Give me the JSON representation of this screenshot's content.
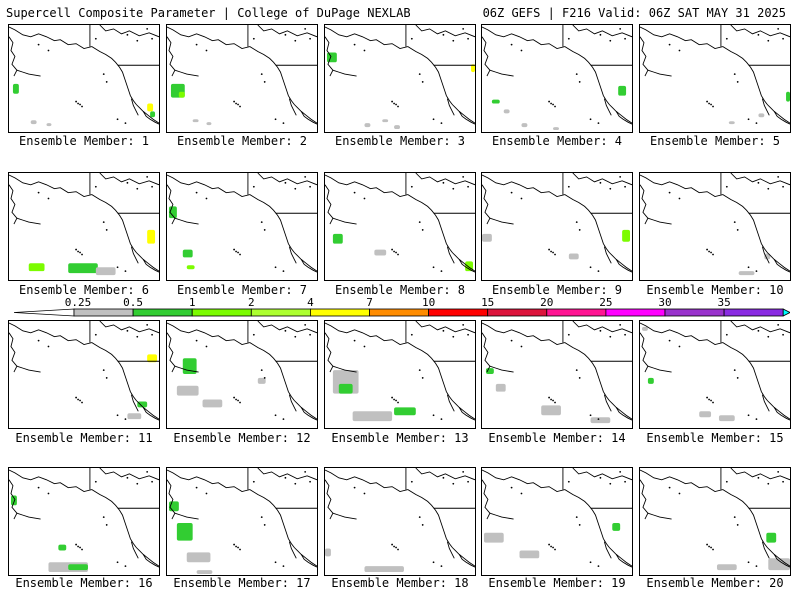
{
  "header": {
    "left_title": "Supercell Composite Parameter | College of DuPage NEXLAB",
    "right_title": "06Z GEFS | F216 Valid: 06Z SAT MAY 31 2025"
  },
  "colors": {
    "bins": [
      "#c0c0c0",
      "#32cd32",
      "#7cfc00",
      "#adff2f",
      "#ffff00",
      "#ff8c00",
      "#ff0000",
      "#dc143c",
      "#ff1493",
      "#ff00ff",
      "#9932cc",
      "#8a2be2",
      "#9370db",
      "#00ffff"
    ]
  },
  "colorbar": {
    "ticks": [
      "0.25",
      "0.5",
      "1",
      "2",
      "4",
      "7",
      "10",
      "15",
      "20",
      "25",
      "30",
      "35"
    ]
  },
  "members": [
    {
      "label": "Ensemble Member: 1"
    },
    {
      "label": "Ensemble Member: 2"
    },
    {
      "label": "Ensemble Member: 3"
    },
    {
      "label": "Ensemble Member: 4"
    },
    {
      "label": "Ensemble Member: 5"
    },
    {
      "label": "Ensemble Member: 6"
    },
    {
      "label": "Ensemble Member: 7"
    },
    {
      "label": "Ensemble Member: 8"
    },
    {
      "label": "Ensemble Member: 9"
    },
    {
      "label": "Ensemble Member: 10"
    },
    {
      "label": "Ensemble Member: 11"
    },
    {
      "label": "Ensemble Member: 12"
    },
    {
      "label": "Ensemble Member: 13"
    },
    {
      "label": "Ensemble Member: 14"
    },
    {
      "label": "Ensemble Member: 15"
    },
    {
      "label": "Ensemble Member: 16"
    },
    {
      "label": "Ensemble Member: 17"
    },
    {
      "label": "Ensemble Member: 18"
    },
    {
      "label": "Ensemble Member: 19"
    },
    {
      "label": "Ensemble Member: 20"
    }
  ]
}
